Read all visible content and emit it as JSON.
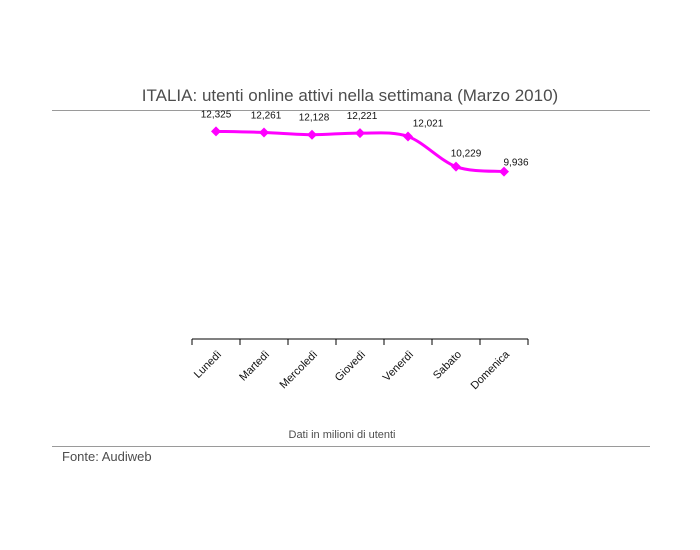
{
  "header": {
    "title": "ITALIA: utenti online attivi nella settimana (Marzo 2010)"
  },
  "footer": {
    "source": "Fonte: Audiweb"
  },
  "colors": {
    "series": "#ff00ff",
    "text": "#111111",
    "rule": "#9a9a9a"
  },
  "chart_data": {
    "type": "line",
    "title": "ITALIA: utenti online attivi nella settimana (Marzo 2010)",
    "categories": [
      "Lunedì",
      "Martedì",
      "Mercoledì",
      "Giovedì",
      "Venerdì",
      "Sabato",
      "Domenica"
    ],
    "series": [
      {
        "values": [
          12.325,
          12.261,
          12.128,
          12.221,
          12.021,
          10.229,
          9.936
        ],
        "labels": [
          "12,325",
          "12,261",
          "12,128",
          "12,221",
          "12,021",
          "10,229",
          "9,936"
        ],
        "color": "#ff00ff",
        "marker": "diamond"
      }
    ],
    "xlabel": "Dati in milioni di utenti",
    "ylabel": "",
    "ylim": [
      0,
      13
    ],
    "grid": false,
    "legend": "none"
  }
}
